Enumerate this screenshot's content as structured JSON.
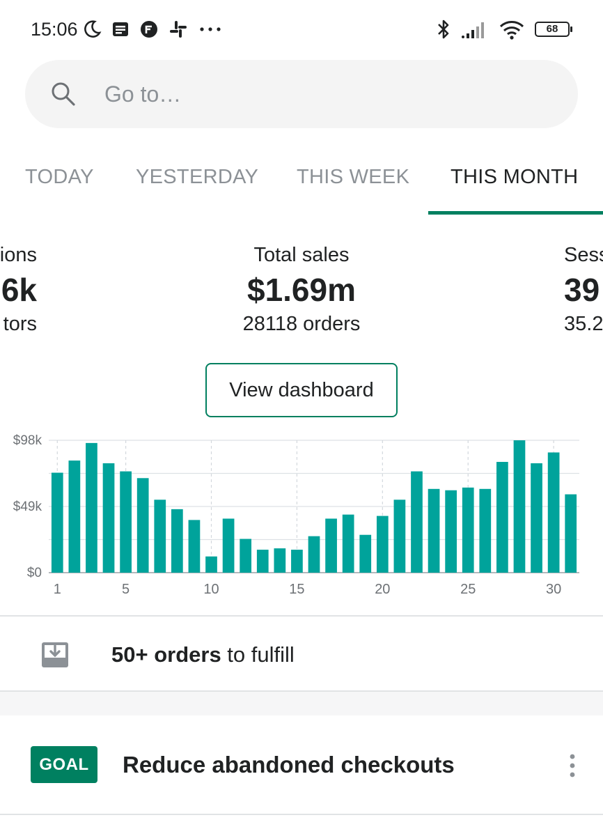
{
  "status_bar": {
    "time": "15:06",
    "battery": "68",
    "left_icons": [
      "moon-icon",
      "news-icon",
      "app-badge-icon",
      "slack-icon",
      "more-dots-icon"
    ],
    "right_icons": [
      "bluetooth-icon",
      "signal-icon",
      "wifi-icon",
      "battery-icon"
    ]
  },
  "search": {
    "placeholder": "Go to…"
  },
  "tabs": [
    {
      "label": "TODAY",
      "active": false
    },
    {
      "label": "YESTERDAY",
      "active": false
    },
    {
      "label": "THIS WEEK",
      "active": false
    },
    {
      "label": "THIS MONTH",
      "active": true
    }
  ],
  "metrics": {
    "left": {
      "label": "ions",
      "value": "6k",
      "sub": "tors"
    },
    "center": {
      "label": "Total sales",
      "value": "$1.69m",
      "sub": "28118 orders"
    },
    "right": {
      "label": "Sess",
      "value": "39",
      "sub": "35.2"
    }
  },
  "dashboard_button": "View dashboard",
  "chart_data": {
    "type": "bar",
    "x": [
      1,
      2,
      3,
      4,
      5,
      6,
      7,
      8,
      9,
      10,
      11,
      12,
      13,
      14,
      15,
      16,
      17,
      18,
      19,
      20,
      21,
      22,
      23,
      24,
      25,
      26,
      27,
      28,
      29,
      30,
      31
    ],
    "values": [
      74,
      83,
      96,
      81,
      75,
      70,
      54,
      47,
      39,
      12,
      40,
      25,
      17,
      18,
      17,
      27,
      40,
      43,
      28,
      42,
      54,
      75,
      62,
      61,
      63,
      62,
      82,
      98,
      81,
      89,
      58
    ],
    "ylim": [
      0,
      98
    ],
    "ytick_labels": [
      "$0",
      "$49k",
      "$98k"
    ],
    "xtick_labels": [
      "1",
      "5",
      "10",
      "15",
      "20",
      "25",
      "30"
    ],
    "xtick_values": [
      1,
      5,
      10,
      15,
      20,
      25,
      30
    ],
    "bar_color": "#00a39b",
    "grid": true
  },
  "fulfill": {
    "bold": "50+ orders",
    "rest": " to fulfill"
  },
  "goal": {
    "badge": "GOAL",
    "title": "Reduce abandoned checkouts"
  },
  "colors": {
    "accent": "#008060",
    "bar": "#00a39b",
    "text": "#202223",
    "muted": "#8c9196"
  }
}
